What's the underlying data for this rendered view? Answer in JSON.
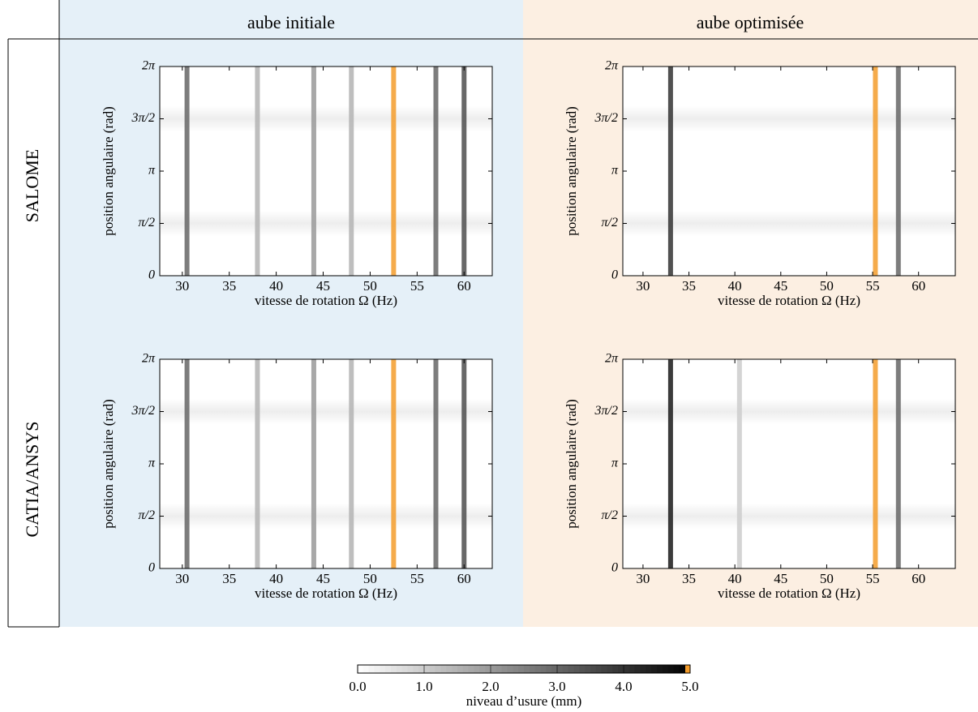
{
  "column_titles": [
    "aube initiale",
    "aube optimisée"
  ],
  "row_titles": [
    "SALOME",
    "CATIA/ANSYS"
  ],
  "chart_data": [
    {
      "type": "heatmap",
      "x_label": "vitesse de rotation Ω (Hz)",
      "y_label": "position angulaire (rad)",
      "xlim": [
        27.6,
        63
      ],
      "xticks": [
        30,
        35,
        40,
        45,
        50,
        55,
        60
      ],
      "ylim": [
        0,
        6.2832
      ],
      "yticks": [
        0,
        {
          "value": 1.5708,
          "label": "π/2"
        },
        {
          "value": 3.1416,
          "label": "π"
        },
        {
          "value": 4.7124,
          "label": "3π/2"
        },
        {
          "value": 6.2832,
          "label": "2π"
        }
      ],
      "x": [
        30.5,
        38,
        44,
        48,
        52.5,
        57,
        60
      ],
      "values": [
        3,
        1.5,
        2,
        1.5,
        5,
        3,
        3.5
      ]
    },
    {
      "type": "heatmap",
      "x_label": "vitesse de rotation Ω (Hz)",
      "y_label": "position angulaire (rad)",
      "xlim": [
        27.8,
        64
      ],
      "xticks": [
        30,
        35,
        40,
        45,
        50,
        55,
        60
      ],
      "ylim": [
        0,
        6.2832
      ],
      "yticks": [
        0,
        {
          "value": 1.5708,
          "label": "π/2"
        },
        {
          "value": 3.1416,
          "label": "π"
        },
        {
          "value": 4.7124,
          "label": "3π/2"
        },
        {
          "value": 6.2832,
          "label": "2π"
        }
      ],
      "x": [
        33,
        55.3,
        57.8
      ],
      "values": [
        4,
        5,
        3
      ]
    },
    {
      "type": "heatmap",
      "x_label": "vitesse de rotation Ω (Hz)",
      "y_label": "position angulaire (rad)",
      "xlim": [
        27.6,
        63
      ],
      "xticks": [
        30,
        35,
        40,
        45,
        50,
        55,
        60
      ],
      "ylim": [
        0,
        6.2832
      ],
      "yticks": [
        0,
        {
          "value": 1.5708,
          "label": "π/2"
        },
        {
          "value": 3.1416,
          "label": "π"
        },
        {
          "value": 4.7124,
          "label": "3π/2"
        },
        {
          "value": 6.2832,
          "label": "2π"
        }
      ],
      "x": [
        30.5,
        38,
        44,
        48,
        52.5,
        57,
        60
      ],
      "values": [
        3,
        1.5,
        2,
        1.5,
        5,
        3,
        3.5
      ]
    },
    {
      "type": "heatmap",
      "x_label": "vitesse de rotation Ω (Hz)",
      "y_label": "position angulaire (rad)",
      "xlim": [
        27.8,
        64
      ],
      "xticks": [
        30,
        35,
        40,
        45,
        50,
        55,
        60
      ],
      "ylim": [
        0,
        6.2832
      ],
      "yticks": [
        0,
        {
          "value": 1.5708,
          "label": "π/2"
        },
        {
          "value": 3.1416,
          "label": "π"
        },
        {
          "value": 4.7124,
          "label": "3π/2"
        },
        {
          "value": 6.2832,
          "label": "2π"
        }
      ],
      "x": [
        33,
        40.5,
        55.3,
        57.8
      ],
      "values": [
        4.5,
        1,
        5,
        3
      ]
    }
  ],
  "colorbar": {
    "label": "niveau d’usure (mm)",
    "lim": [
      0,
      5
    ],
    "ticks": [
      {
        "value": 0,
        "label": "0.0"
      },
      {
        "value": 1,
        "label": "1.0"
      },
      {
        "value": 2,
        "label": "2.0"
      },
      {
        "value": 3,
        "label": "3.0"
      },
      {
        "value": 4,
        "label": "4.0"
      },
      {
        "value": 5,
        "label": "5.0"
      }
    ]
  }
}
